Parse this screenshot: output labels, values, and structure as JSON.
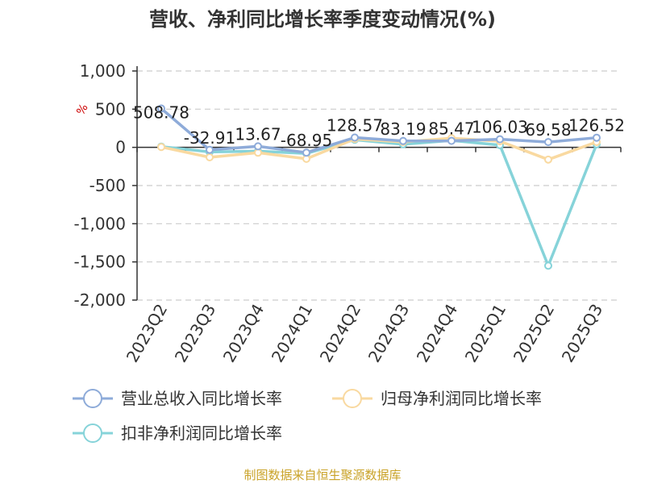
{
  "chart_data": {
    "type": "line",
    "title": "营收、净利同比增长率季度变动情况(%)",
    "unit_label": "%",
    "categories": [
      "2023Q2",
      "2023Q3",
      "2023Q4",
      "2024Q1",
      "2024Q2",
      "2024Q3",
      "2024Q4",
      "2025Q1",
      "2025Q2",
      "2025Q3"
    ],
    "ylim": [
      -2000,
      1000
    ],
    "yticks": [
      1000,
      500,
      0,
      -500,
      -1000,
      -1500,
      -2000
    ],
    "ytick_labels": [
      "1,000",
      "500",
      "0",
      "-500",
      "-1,000",
      "-1,500",
      "-2,000"
    ],
    "grid": true,
    "legend_position": "bottom",
    "series": [
      {
        "name": "营业总收入同比增长率",
        "color": "#8eabd9",
        "values": [
          508.78,
          -32.91,
          13.67,
          -68.95,
          128.57,
          83.19,
          85.47,
          106.03,
          69.58,
          126.52
        ],
        "labels": [
          "508.78",
          "-32.91",
          "13.67",
          "-68.95",
          "128.57",
          "83.19",
          "85.47",
          "106.03",
          "69.58",
          "126.52"
        ]
      },
      {
        "name": "归母净利润同比增长率",
        "color": "#f9d9a0",
        "values": [
          5,
          -130,
          -70,
          -150,
          110,
          70,
          120,
          80,
          -160,
          70
        ]
      },
      {
        "name": "扣非净利润同比增长率",
        "color": "#86d3d9",
        "values": [
          10,
          -60,
          -50,
          -80,
          100,
          40,
          90,
          30,
          -1550,
          40
        ]
      }
    ]
  },
  "footer": {
    "source": "制图数据来自恒生聚源数据库"
  }
}
